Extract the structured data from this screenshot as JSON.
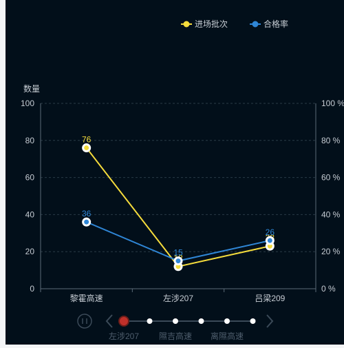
{
  "chart_data": {
    "type": "line",
    "categories": [
      "黎霍高速",
      "左涉207",
      "吕梁209"
    ],
    "series": [
      {
        "name": "进场批次",
        "axis": "left",
        "color": "#f5dc3c",
        "values": [
          76,
          12,
          23
        ]
      },
      {
        "name": "合格率",
        "axis": "right",
        "color": "#2f86d6",
        "values": [
          36,
          15,
          26
        ]
      }
    ],
    "ylabel": "数量",
    "ylim": [
      0,
      100
    ],
    "y_ticks": [
      "0",
      "20",
      "40",
      "60",
      "80",
      "100"
    ],
    "y2lim": [
      0,
      100
    ],
    "y2_ticks": [
      "0 %",
      "20 %",
      "40 %",
      "60 %",
      "80 %",
      "100 %"
    ],
    "grid": true,
    "legend_position": "top-right",
    "data_labels": true
  },
  "timeline": {
    "state": "paused",
    "points": 6,
    "current_index": 0,
    "labels": [
      {
        "index": 0,
        "text": "左涉207"
      },
      {
        "index": 2,
        "text": "隰吉高速"
      },
      {
        "index": 4,
        "text": "离隰高速"
      }
    ],
    "colors": {
      "active": "#c0302a",
      "dot": "#ffffff",
      "control": "#3b4a58",
      "label": "#4e5d6c"
    }
  }
}
